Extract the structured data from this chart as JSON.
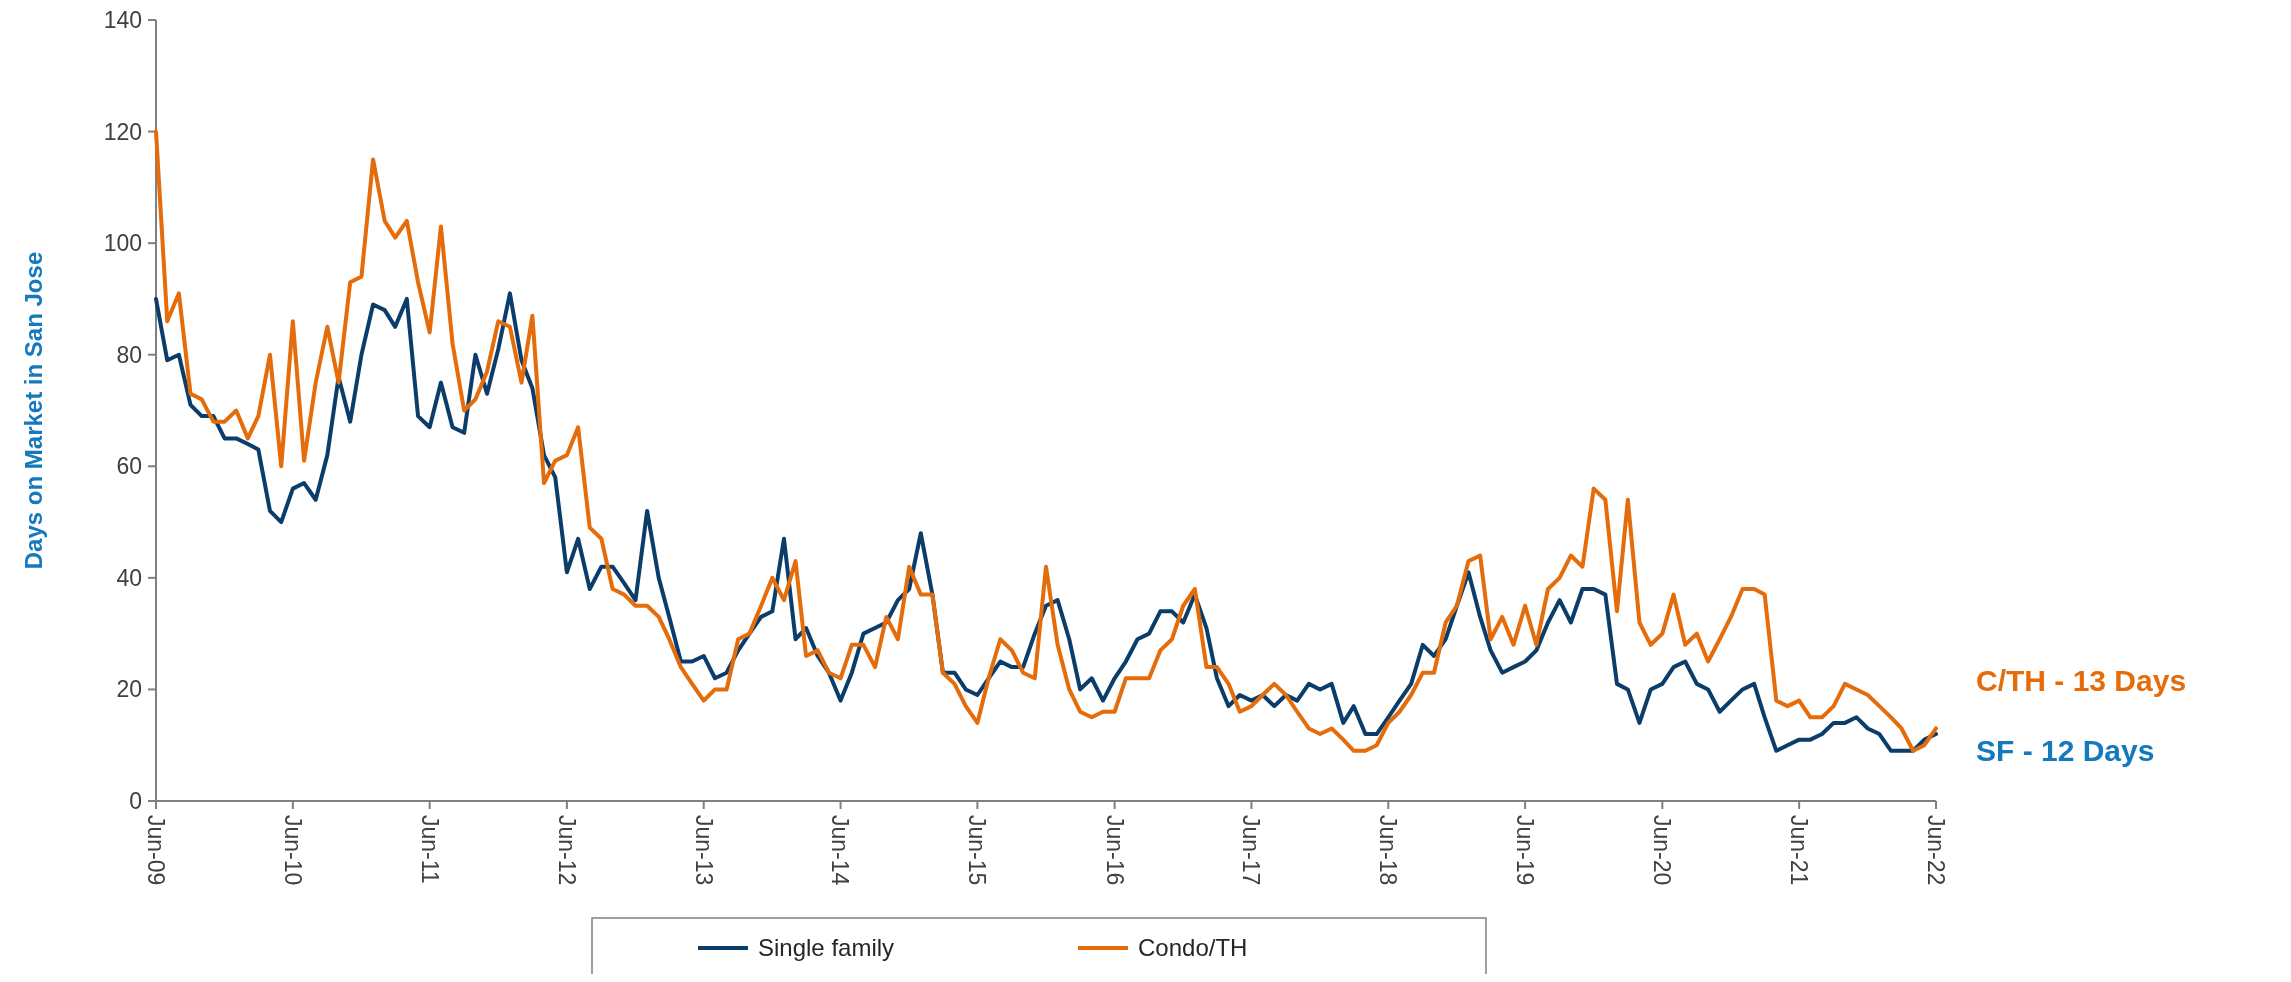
{
  "chart_data": {
    "type": "line",
    "ylabel": "Days on Market in San Jose",
    "xlim": [
      "2009-06",
      "2022-06"
    ],
    "xticks": [
      {
        "value": "2009-06",
        "label": "Jun-09"
      },
      {
        "value": "2010-06",
        "label": "Jun-10"
      },
      {
        "value": "2011-06",
        "label": "Jun-11"
      },
      {
        "value": "2012-06",
        "label": "Jun-12"
      },
      {
        "value": "2013-06",
        "label": "Jun-13"
      },
      {
        "value": "2014-06",
        "label": "Jun-14"
      },
      {
        "value": "2015-06",
        "label": "Jun-15"
      },
      {
        "value": "2016-06",
        "label": "Jun-16"
      },
      {
        "value": "2017-06",
        "label": "Jun-17"
      },
      {
        "value": "2018-06",
        "label": "Jun-18"
      },
      {
        "value": "2019-06",
        "label": "Jun-19"
      },
      {
        "value": "2020-06",
        "label": "Jun-20"
      },
      {
        "value": "2021-06",
        "label": "Jun-21"
      },
      {
        "value": "2022-06",
        "label": "Jun-22"
      }
    ],
    "ylim": [
      0,
      140
    ],
    "yticks": [
      0,
      20,
      40,
      60,
      80,
      100,
      120,
      140
    ],
    "grid": false,
    "legend": "bottom",
    "marker": "none",
    "line_style": "solid",
    "annotations": [
      "C/TH - 13 Days",
      "SF - 12 Days"
    ],
    "x": [
      "2009-06",
      "2009-07",
      "2009-08",
      "2009-09",
      "2009-10",
      "2009-11",
      "2009-12",
      "2010-01",
      "2010-02",
      "2010-03",
      "2010-04",
      "2010-05",
      "2010-06",
      "2010-07",
      "2010-08",
      "2010-09",
      "2010-10",
      "2010-11",
      "2010-12",
      "2011-01",
      "2011-02",
      "2011-03",
      "2011-04",
      "2011-05",
      "2011-06",
      "2011-07",
      "2011-08",
      "2011-09",
      "2011-10",
      "2011-11",
      "2011-12",
      "2012-01",
      "2012-02",
      "2012-03",
      "2012-04",
      "2012-05",
      "2012-06",
      "2012-07",
      "2012-08",
      "2012-09",
      "2012-10",
      "2012-11",
      "2012-12",
      "2013-01",
      "2013-02",
      "2013-03",
      "2013-04",
      "2013-05",
      "2013-06",
      "2013-07",
      "2013-08",
      "2013-09",
      "2013-10",
      "2013-11",
      "2013-12",
      "2014-01",
      "2014-02",
      "2014-03",
      "2014-04",
      "2014-05",
      "2014-06",
      "2014-07",
      "2014-08",
      "2014-09",
      "2014-10",
      "2014-11",
      "2014-12",
      "2015-01",
      "2015-02",
      "2015-03",
      "2015-04",
      "2015-05",
      "2015-06",
      "2015-07",
      "2015-08",
      "2015-09",
      "2015-10",
      "2015-11",
      "2015-12",
      "2016-01",
      "2016-02",
      "2016-03",
      "2016-04",
      "2016-05",
      "2016-06",
      "2016-07",
      "2016-08",
      "2016-09",
      "2016-10",
      "2016-11",
      "2016-12",
      "2017-01",
      "2017-02",
      "2017-03",
      "2017-04",
      "2017-05",
      "2017-06",
      "2017-07",
      "2017-08",
      "2017-09",
      "2017-10",
      "2017-11",
      "2017-12",
      "2018-01",
      "2018-02",
      "2018-03",
      "2018-04",
      "2018-05",
      "2018-06",
      "2018-07",
      "2018-08",
      "2018-09",
      "2018-10",
      "2018-11",
      "2018-12",
      "2019-01",
      "2019-02",
      "2019-03",
      "2019-04",
      "2019-05",
      "2019-06",
      "2019-07",
      "2019-08",
      "2019-09",
      "2019-10",
      "2019-11",
      "2019-12",
      "2020-01",
      "2020-02",
      "2020-03",
      "2020-04",
      "2020-05",
      "2020-06",
      "2020-07",
      "2020-08",
      "2020-09",
      "2020-10",
      "2020-11",
      "2020-12",
      "2021-01",
      "2021-02",
      "2021-03",
      "2021-04",
      "2021-05",
      "2021-06",
      "2021-07",
      "2021-08",
      "2021-09",
      "2021-10",
      "2021-11",
      "2021-12",
      "2022-01",
      "2022-02",
      "2022-03",
      "2022-04",
      "2022-05",
      "2022-06"
    ],
    "series": [
      {
        "name": "Single family",
        "color": "#0b3d6b",
        "values": [
          90,
          79,
          80,
          71,
          69,
          69,
          65,
          65,
          64,
          63,
          52,
          50,
          56,
          57,
          54,
          62,
          76,
          68,
          80,
          89,
          88,
          85,
          90,
          69,
          67,
          75,
          67,
          66,
          80,
          73,
          81,
          91,
          79,
          74,
          62,
          58,
          41,
          47,
          38,
          42,
          42,
          39,
          36,
          52,
          40,
          33,
          25,
          25,
          26,
          22,
          23,
          27,
          30,
          33,
          34,
          47,
          29,
          31,
          26,
          23,
          18,
          23,
          30,
          31,
          32,
          36,
          38,
          48,
          37,
          23,
          23,
          20,
          19,
          22,
          25,
          24,
          24,
          30,
          35,
          36,
          29,
          20,
          22,
          18,
          22,
          25,
          29,
          30,
          34,
          34,
          32,
          37,
          31,
          22,
          17,
          19,
          18,
          19,
          17,
          19,
          18,
          21,
          20,
          21,
          14,
          17,
          12,
          12,
          15,
          18,
          21,
          28,
          26,
          29,
          35,
          41,
          33,
          27,
          23,
          24,
          25,
          27,
          32,
          36,
          32,
          38,
          38,
          37,
          21,
          20,
          14,
          20,
          21,
          24,
          25,
          21,
          20,
          16,
          18,
          20,
          21,
          15,
          9,
          10,
          11,
          11,
          12,
          14,
          14,
          15,
          13,
          12,
          9,
          9,
          9,
          11,
          12
        ]
      },
      {
        "name": "Condo/TH",
        "color": "#e46c0a",
        "values": [
          120,
          86,
          91,
          73,
          72,
          68,
          68,
          70,
          65,
          69,
          80,
          60,
          86,
          61,
          75,
          85,
          75,
          93,
          94,
          115,
          104,
          101,
          104,
          93,
          84,
          103,
          82,
          70,
          72,
          77,
          86,
          85,
          75,
          87,
          57,
          61,
          62,
          67,
          49,
          47,
          38,
          37,
          35,
          35,
          33,
          29,
          24,
          21,
          18,
          20,
          20,
          29,
          30,
          35,
          40,
          36,
          43,
          26,
          27,
          23,
          22,
          28,
          28,
          24,
          33,
          29,
          42,
          37,
          37,
          23,
          21,
          17,
          14,
          22,
          29,
          27,
          23,
          22,
          42,
          28,
          20,
          16,
          15,
          16,
          16,
          22,
          22,
          22,
          27,
          29,
          35,
          38,
          24,
          24,
          21,
          16,
          17,
          19,
          21,
          19,
          16,
          13,
          12,
          13,
          11,
          9,
          9,
          10,
          14,
          16,
          19,
          23,
          23,
          32,
          35,
          43,
          44,
          29,
          33,
          28,
          35,
          28,
          38,
          40,
          44,
          42,
          56,
          54,
          34,
          54,
          32,
          28,
          30,
          37,
          28,
          30,
          25,
          29,
          33,
          38,
          38,
          37,
          18,
          17,
          18,
          15,
          15,
          17,
          21,
          20,
          19,
          17,
          15,
          13,
          9,
          10,
          13
        ]
      }
    ]
  }
}
